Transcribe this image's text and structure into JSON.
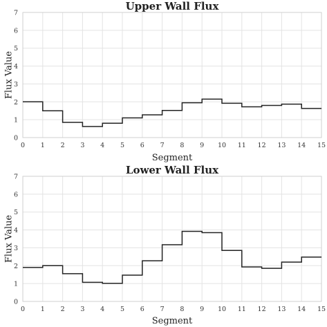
{
  "chart_data": [
    {
      "type": "line",
      "drawstyle": "steps-post",
      "title": "Upper Wall Flux",
      "xlabel": "Segment",
      "ylabel": "Flux Value",
      "xlim": [
        0,
        15
      ],
      "ylim": [
        0,
        7
      ],
      "xticks": [
        "0",
        "1",
        "2",
        "3",
        "4",
        "5",
        "6",
        "7",
        "8",
        "9",
        "10",
        "11",
        "12",
        "13",
        "14",
        "15"
      ],
      "yticks": [
        "0",
        "1",
        "2",
        "3",
        "4",
        "5",
        "6",
        "7"
      ],
      "grid": true,
      "values": [
        2.0,
        1.5,
        0.85,
        0.62,
        0.8,
        1.1,
        1.27,
        1.52,
        1.95,
        2.15,
        1.92,
        1.72,
        1.8,
        1.87,
        1.63
      ],
      "color": "#222222"
    },
    {
      "type": "line",
      "drawstyle": "steps-post",
      "title": "Lower Wall Flux",
      "xlabel": "Segment",
      "ylabel": "Flux Value",
      "xlim": [
        0,
        15
      ],
      "ylim": [
        0,
        7
      ],
      "xticks": [
        "0",
        "1",
        "2",
        "3",
        "4",
        "5",
        "6",
        "7",
        "8",
        "9",
        "10",
        "11",
        "12",
        "13",
        "14",
        "15"
      ],
      "yticks": [
        "0",
        "1",
        "2",
        "3",
        "4",
        "5",
        "6",
        "7"
      ],
      "grid": true,
      "values": [
        1.9,
        2.0,
        1.55,
        1.07,
        1.01,
        1.47,
        2.27,
        3.17,
        3.92,
        3.85,
        2.85,
        1.93,
        1.85,
        2.2,
        2.48
      ],
      "color": "#222222"
    }
  ]
}
